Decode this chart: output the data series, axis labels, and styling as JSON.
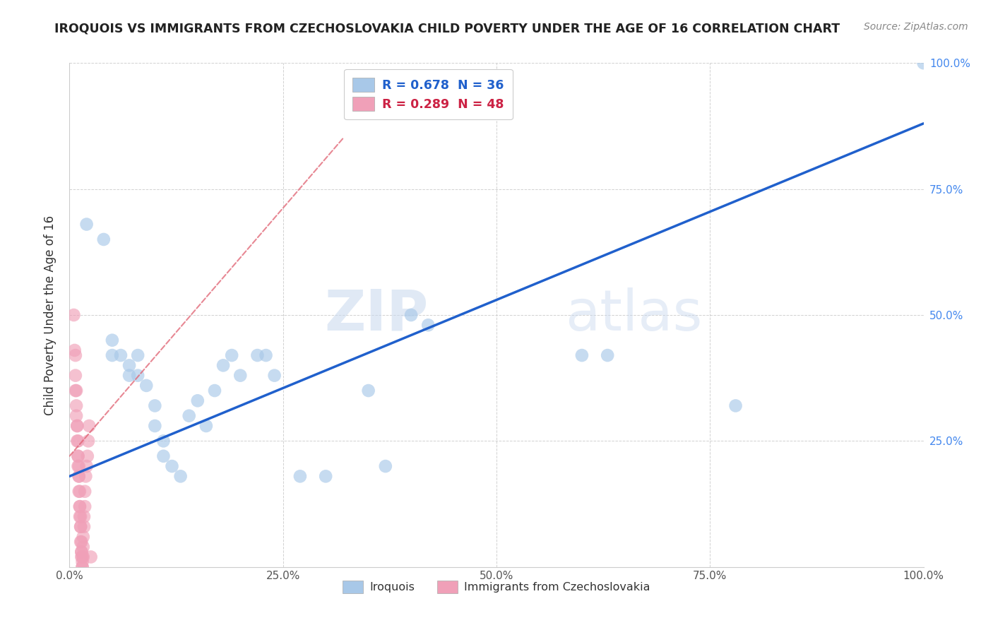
{
  "title": "IROQUOIS VS IMMIGRANTS FROM CZECHOSLOVAKIA CHILD POVERTY UNDER THE AGE OF 16 CORRELATION CHART",
  "source": "Source: ZipAtlas.com",
  "ylabel": "Child Poverty Under the Age of 16",
  "xlim": [
    0,
    1.0
  ],
  "ylim": [
    0,
    1.0
  ],
  "xtick_labels": [
    "0.0%",
    "25.0%",
    "50.0%",
    "75.0%",
    "100.0%"
  ],
  "xtick_vals": [
    0.0,
    0.25,
    0.5,
    0.75,
    1.0
  ],
  "ytick_labels": [
    "25.0%",
    "50.0%",
    "75.0%",
    "100.0%"
  ],
  "ytick_vals": [
    0.25,
    0.5,
    0.75,
    1.0
  ],
  "watermark_zip": "ZIP",
  "watermark_atlas": "atlas",
  "legend_label_1": "R = 0.678  N = 36",
  "legend_label_2": "R = 0.289  N = 48",
  "legend_name_1": "Iroquois",
  "legend_name_2": "Immigrants from Czechoslovakia",
  "iroquois_color": "#a8c8e8",
  "immigrants_color": "#f0a0b8",
  "blue_line_color": "#2060cc",
  "red_line_color": "#e06070",
  "grid_color": "#cccccc",
  "title_color": "#222222",
  "source_color": "#888888",
  "legend_text_blue": "#2060cc",
  "legend_text_pink": "#cc2244",
  "ytick_color": "#4488ee",
  "xtick_color": "#555555",
  "background_color": "#ffffff",
  "blue_line_x0": 0.0,
  "blue_line_y0": 0.18,
  "blue_line_x1": 1.0,
  "blue_line_y1": 0.88,
  "red_line_x0": 0.0,
  "red_line_y0": 0.22,
  "red_line_x1": 0.32,
  "red_line_y1": 0.85,
  "iroquois_dots": [
    [
      0.02,
      0.68
    ],
    [
      0.04,
      0.65
    ],
    [
      0.05,
      0.42
    ],
    [
      0.05,
      0.45
    ],
    [
      0.06,
      0.42
    ],
    [
      0.07,
      0.4
    ],
    [
      0.07,
      0.38
    ],
    [
      0.08,
      0.42
    ],
    [
      0.08,
      0.38
    ],
    [
      0.09,
      0.36
    ],
    [
      0.1,
      0.32
    ],
    [
      0.1,
      0.28
    ],
    [
      0.11,
      0.25
    ],
    [
      0.11,
      0.22
    ],
    [
      0.12,
      0.2
    ],
    [
      0.13,
      0.18
    ],
    [
      0.14,
      0.3
    ],
    [
      0.15,
      0.33
    ],
    [
      0.16,
      0.28
    ],
    [
      0.17,
      0.35
    ],
    [
      0.18,
      0.4
    ],
    [
      0.19,
      0.42
    ],
    [
      0.2,
      0.38
    ],
    [
      0.22,
      0.42
    ],
    [
      0.23,
      0.42
    ],
    [
      0.24,
      0.38
    ],
    [
      0.27,
      0.18
    ],
    [
      0.3,
      0.18
    ],
    [
      0.35,
      0.35
    ],
    [
      0.37,
      0.2
    ],
    [
      0.4,
      0.5
    ],
    [
      0.42,
      0.48
    ],
    [
      0.6,
      0.42
    ],
    [
      0.63,
      0.42
    ],
    [
      0.78,
      0.32
    ],
    [
      1.0,
      1.0
    ]
  ],
  "immigrants_dots": [
    [
      0.005,
      0.5
    ],
    [
      0.006,
      0.43
    ],
    [
      0.007,
      0.42
    ],
    [
      0.007,
      0.38
    ],
    [
      0.007,
      0.35
    ],
    [
      0.008,
      0.35
    ],
    [
      0.008,
      0.32
    ],
    [
      0.008,
      0.3
    ],
    [
      0.009,
      0.28
    ],
    [
      0.009,
      0.28
    ],
    [
      0.009,
      0.25
    ],
    [
      0.01,
      0.25
    ],
    [
      0.01,
      0.22
    ],
    [
      0.01,
      0.22
    ],
    [
      0.01,
      0.2
    ],
    [
      0.011,
      0.2
    ],
    [
      0.011,
      0.18
    ],
    [
      0.011,
      0.18
    ],
    [
      0.011,
      0.15
    ],
    [
      0.012,
      0.15
    ],
    [
      0.012,
      0.12
    ],
    [
      0.012,
      0.12
    ],
    [
      0.012,
      0.1
    ],
    [
      0.013,
      0.1
    ],
    [
      0.013,
      0.08
    ],
    [
      0.013,
      0.08
    ],
    [
      0.013,
      0.05
    ],
    [
      0.014,
      0.05
    ],
    [
      0.014,
      0.03
    ],
    [
      0.014,
      0.03
    ],
    [
      0.014,
      0.02
    ],
    [
      0.015,
      0.02
    ],
    [
      0.015,
      0.01
    ],
    [
      0.015,
      0.0
    ],
    [
      0.015,
      0.0
    ],
    [
      0.016,
      0.02
    ],
    [
      0.016,
      0.04
    ],
    [
      0.016,
      0.06
    ],
    [
      0.017,
      0.08
    ],
    [
      0.017,
      0.1
    ],
    [
      0.018,
      0.12
    ],
    [
      0.018,
      0.15
    ],
    [
      0.019,
      0.18
    ],
    [
      0.02,
      0.2
    ],
    [
      0.021,
      0.22
    ],
    [
      0.022,
      0.25
    ],
    [
      0.023,
      0.28
    ],
    [
      0.025,
      0.02
    ]
  ]
}
